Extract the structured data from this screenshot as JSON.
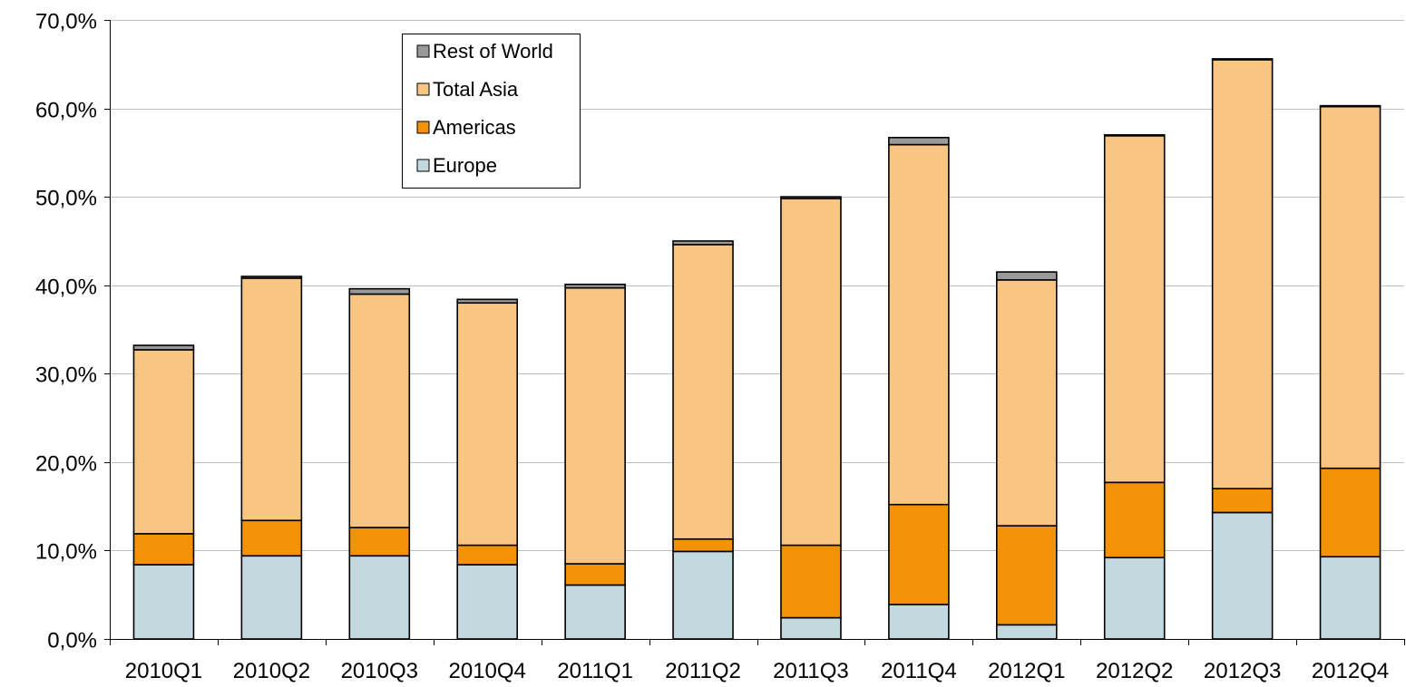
{
  "chart_data": {
    "type": "bar",
    "stacked": true,
    "title": "",
    "xlabel": "",
    "ylabel": "",
    "ylim": [
      0,
      70
    ],
    "y_tick_step": 10,
    "y_tick_format": "percent-comma-1",
    "grid": true,
    "legend_placement": "top-center",
    "categories": [
      "2010Q1",
      "2010Q2",
      "2010Q3",
      "2010Q4",
      "2011Q1",
      "2011Q2",
      "2011Q3",
      "2011Q4",
      "2012Q1",
      "2012Q2",
      "2012Q3",
      "2012Q4"
    ],
    "series": [
      {
        "name": "Europe",
        "color": "#c2d9df",
        "values": [
          8.4,
          9.4,
          9.4,
          8.4,
          6.1,
          9.9,
          2.4,
          3.9,
          1.6,
          9.2,
          14.3,
          9.3
        ]
      },
      {
        "name": "Americas",
        "color": "#f39206",
        "values": [
          3.5,
          4.0,
          3.2,
          2.2,
          2.4,
          1.4,
          8.2,
          11.3,
          11.2,
          8.5,
          2.7,
          10.0
        ]
      },
      {
        "name": "Total Asia",
        "color": "#f8c682",
        "values": [
          20.8,
          27.4,
          26.4,
          27.4,
          31.2,
          33.3,
          39.2,
          40.7,
          27.8,
          39.2,
          48.5,
          40.9
        ]
      },
      {
        "name": "Rest of World",
        "color": "#999999",
        "values": [
          0.5,
          0.2,
          0.6,
          0.4,
          0.4,
          0.4,
          0.2,
          0.8,
          0.9,
          0.1,
          0.1,
          0.1
        ]
      }
    ],
    "legend_order": [
      "Rest of World",
      "Total Asia",
      "Americas",
      "Europe"
    ]
  }
}
